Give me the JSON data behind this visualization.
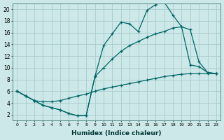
{
  "xlabel": "Humidex (Indice chaleur)",
  "bg_color": "#cce8e8",
  "grid_color": "#aacccc",
  "line_color": "#006666",
  "xlim": [
    -0.5,
    23.5
  ],
  "ylim": [
    1,
    21
  ],
  "xticks": [
    0,
    1,
    2,
    3,
    4,
    5,
    6,
    7,
    8,
    9,
    10,
    11,
    12,
    13,
    14,
    15,
    16,
    17,
    18,
    19,
    20,
    21,
    22,
    23
  ],
  "yticks": [
    2,
    4,
    6,
    8,
    10,
    12,
    14,
    16,
    18,
    20
  ],
  "line1_x": [
    0,
    1,
    2,
    3,
    4,
    5,
    6,
    7,
    8,
    9,
    10,
    11,
    12,
    13,
    14,
    15,
    16,
    17,
    18,
    19,
    20,
    21,
    22,
    23
  ],
  "line1_y": [
    6.0,
    5.2,
    4.4,
    3.6,
    3.2,
    2.8,
    2.2,
    1.8,
    1.9,
    8.5,
    13.8,
    15.8,
    17.8,
    17.5,
    16.2,
    19.8,
    20.8,
    21.2,
    19.0,
    17.0,
    10.5,
    10.2,
    9.2,
    9.0
  ],
  "line2_x": [
    0,
    1,
    2,
    3,
    4,
    5,
    6,
    7,
    8,
    9,
    10,
    11,
    12,
    13,
    14,
    15,
    16,
    17,
    18,
    19,
    20,
    21,
    22,
    23
  ],
  "line2_y": [
    6.0,
    5.2,
    4.4,
    3.6,
    3.2,
    2.8,
    2.2,
    1.8,
    1.9,
    8.5,
    10.0,
    11.5,
    12.8,
    13.8,
    14.5,
    15.2,
    15.8,
    16.2,
    16.8,
    17.0,
    16.5,
    11.0,
    9.2,
    9.0
  ],
  "line3_x": [
    0,
    1,
    2,
    3,
    4,
    5,
    6,
    7,
    8,
    9,
    10,
    11,
    12,
    13,
    14,
    15,
    16,
    17,
    18,
    19,
    20,
    21,
    22,
    23
  ],
  "line3_y": [
    6.0,
    5.2,
    4.4,
    4.2,
    4.2,
    4.4,
    4.8,
    5.2,
    5.5,
    6.0,
    6.4,
    6.7,
    7.0,
    7.3,
    7.6,
    7.9,
    8.2,
    8.5,
    8.7,
    8.9,
    9.0,
    9.0,
    9.0,
    9.0
  ]
}
